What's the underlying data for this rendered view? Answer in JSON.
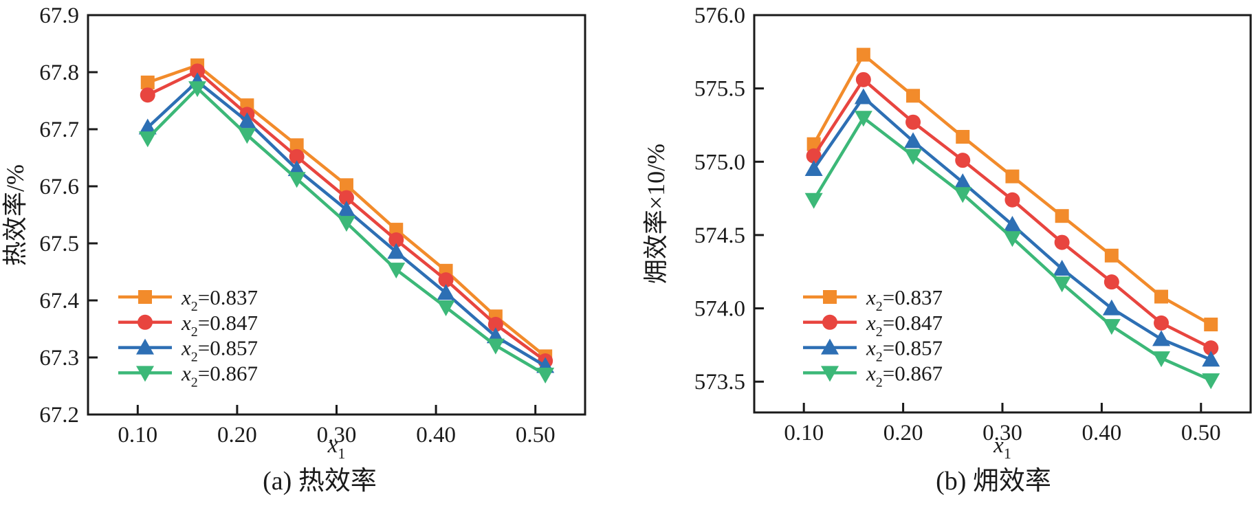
{
  "figure": {
    "background": "#ffffff",
    "text_color": "#1a1a1a",
    "spine_color": "#1a1a1a"
  },
  "chart_data": [
    {
      "type": "line",
      "title": "",
      "caption": "(a) 热效率",
      "xlabel": "x₁",
      "ylabel": "热效率/%",
      "xlim": [
        0.05,
        0.55
      ],
      "ylim": [
        67.2,
        67.9
      ],
      "grid": false,
      "legend_position": "inside lower-left",
      "xtick_values": [
        0.1,
        0.2,
        0.3,
        0.4,
        0.5
      ],
      "xtick_labels": [
        "0.10",
        "0.20",
        "0.30",
        "0.40",
        "0.50"
      ],
      "ytick_values": [
        67.2,
        67.3,
        67.4,
        67.5,
        67.6,
        67.7,
        67.8,
        67.9
      ],
      "ytick_labels": [
        "67.2",
        "67.3",
        "67.4",
        "67.5",
        "67.6",
        "67.7",
        "67.8",
        "67.9"
      ],
      "x": [
        0.11,
        0.16,
        0.21,
        0.26,
        0.31,
        0.36,
        0.41,
        0.46,
        0.51
      ],
      "series": [
        {
          "name": "x₂=0.837",
          "marker": "square",
          "color": "#F28B2B",
          "values": [
            67.782,
            67.812,
            67.742,
            67.672,
            67.602,
            67.524,
            67.452,
            67.372,
            67.302
          ]
        },
        {
          "name": "x₂=0.847",
          "marker": "circle",
          "color": "#E8453F",
          "values": [
            67.76,
            67.802,
            67.726,
            67.652,
            67.58,
            67.506,
            67.436,
            67.358,
            67.294
          ]
        },
        {
          "name": "x₂=0.857",
          "marker": "triangle-up",
          "color": "#2D6FB4",
          "values": [
            67.703,
            67.784,
            67.714,
            67.63,
            67.559,
            67.485,
            67.413,
            67.337,
            67.285
          ]
        },
        {
          "name": "x₂=0.867",
          "marker": "triangle-down",
          "color": "#3CB878",
          "values": [
            67.684,
            67.772,
            67.69,
            67.613,
            67.536,
            67.454,
            67.388,
            67.321,
            67.27
          ]
        }
      ]
    },
    {
      "type": "line",
      "title": "",
      "caption": "(b) 㶲效率",
      "xlabel": "x₁",
      "ylabel": "㶲效率×10/%",
      "xlim": [
        0.05,
        0.55
      ],
      "ylim": [
        573.29,
        576.0
      ],
      "grid": false,
      "legend_position": "inside lower-left",
      "xtick_values": [
        0.1,
        0.2,
        0.3,
        0.4,
        0.5
      ],
      "xtick_labels": [
        "0.10",
        "0.20",
        "0.30",
        "0.40",
        "0.50"
      ],
      "ytick_values": [
        573.5,
        574.0,
        574.5,
        575.0,
        575.5,
        576.0
      ],
      "ytick_labels": [
        "573.5",
        "574.0",
        "574.5",
        "575.0",
        "575.5",
        "576.0"
      ],
      "x": [
        0.11,
        0.16,
        0.21,
        0.26,
        0.31,
        0.36,
        0.41,
        0.46,
        0.51
      ],
      "series": [
        {
          "name": "x₂=0.837",
          "marker": "square",
          "color": "#F28B2B",
          "values": [
            575.12,
            575.73,
            575.45,
            575.17,
            574.9,
            574.63,
            574.36,
            574.08,
            573.89
          ]
        },
        {
          "name": "x₂=0.847",
          "marker": "circle",
          "color": "#E8453F",
          "values": [
            575.04,
            575.56,
            575.27,
            575.01,
            574.74,
            574.45,
            574.18,
            573.9,
            573.73
          ]
        },
        {
          "name": "x₂=0.857",
          "marker": "triangle-up",
          "color": "#2D6FB4",
          "values": [
            574.95,
            575.44,
            575.14,
            574.86,
            574.57,
            574.27,
            574.0,
            573.79,
            573.65
          ]
        },
        {
          "name": "x₂=0.867",
          "marker": "triangle-down",
          "color": "#3CB878",
          "values": [
            574.74,
            575.3,
            575.04,
            574.78,
            574.48,
            574.17,
            573.88,
            573.66,
            573.51
          ]
        }
      ]
    }
  ]
}
